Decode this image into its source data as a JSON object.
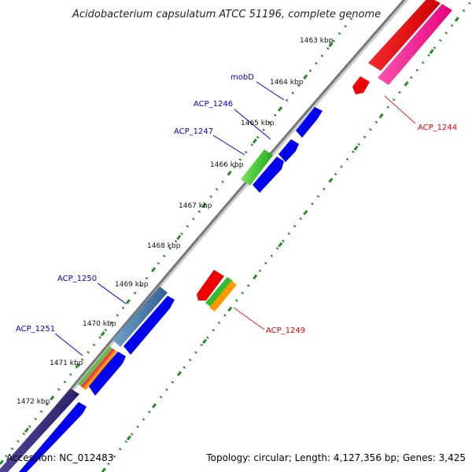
{
  "title": "Acidobacterium capsulatum ATCC 51196, complete genome",
  "footer": {
    "accession": "Accession: NC_012483",
    "summary": "Topology: circular; Length: 4,127,356 bp; Genes: 3,425"
  },
  "colors": {
    "backbone": "#777777",
    "tick_green": "#2a8a2a",
    "forward_blue": "#0000ee",
    "label_blue": "#0000cc",
    "label_red": "#dd0000",
    "leader_red": "#ee2222"
  },
  "kbp_labels": [
    "1463 kbp",
    "1464 kbp",
    "1465 kbp",
    "1466 kbp",
    "1467 kbp",
    "1468 kbp",
    "1469 kbp",
    "1470 kbp",
    "1471 kbp",
    "1472 kbp"
  ],
  "gene_labels_forward": [
    "mobD",
    "ACP_1246",
    "ACP_1247",
    "ACP_1250",
    "ACP_1251"
  ],
  "gene_labels_reverse": [
    "ACP_1244",
    "ACP_1249"
  ]
}
